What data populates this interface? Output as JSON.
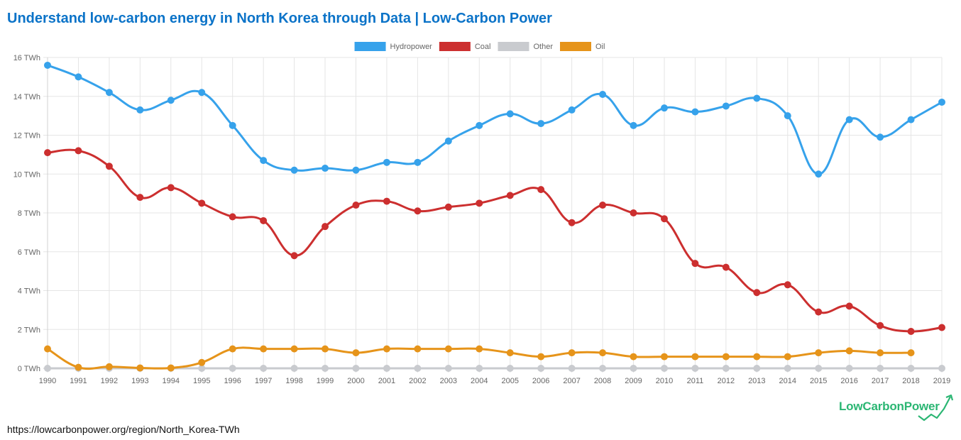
{
  "page": {
    "title": "Understand low-carbon energy in North Korea through Data | Low-Carbon Power",
    "url": "https://lowcarbonpower.org/region/North_Korea-TWh"
  },
  "logo": {
    "text": "LowCarbonPower",
    "color": "#2bb673"
  },
  "chart_data": {
    "type": "line",
    "title": "",
    "xlabel": "",
    "ylabel": "",
    "legend_position": "top-center",
    "grid": true,
    "ylim": [
      0,
      16
    ],
    "y_ticks": [
      "0 TWh",
      "2 TWh",
      "4 TWh",
      "6 TWh",
      "8 TWh",
      "10 TWh",
      "12 TWh",
      "14 TWh",
      "16 TWh"
    ],
    "categories": [
      "1990",
      "1991",
      "1992",
      "1993",
      "1994",
      "1995",
      "1996",
      "1997",
      "1998",
      "1999",
      "2000",
      "2001",
      "2002",
      "2003",
      "2004",
      "2005",
      "2006",
      "2007",
      "2008",
      "2009",
      "2010",
      "2011",
      "2012",
      "2013",
      "2014",
      "2015",
      "2016",
      "2017",
      "2018",
      "2019"
    ],
    "series": [
      {
        "name": "Hydropower",
        "color": "#36a2eb",
        "values": [
          15.6,
          15.0,
          14.2,
          13.3,
          13.8,
          14.2,
          12.5,
          10.7,
          10.2,
          10.3,
          10.2,
          10.6,
          10.6,
          11.7,
          12.5,
          13.1,
          12.6,
          13.3,
          14.1,
          12.5,
          13.4,
          13.2,
          13.5,
          13.9,
          13.0,
          10.0,
          12.8,
          11.9,
          12.8,
          13.7
        ]
      },
      {
        "name": "Coal",
        "color": "#cc2f2f",
        "values": [
          11.1,
          11.2,
          10.4,
          8.8,
          9.3,
          8.5,
          7.8,
          7.6,
          5.8,
          7.3,
          8.4,
          8.6,
          8.1,
          8.3,
          8.5,
          8.9,
          9.2,
          7.5,
          8.4,
          8.0,
          7.7,
          5.4,
          5.2,
          3.9,
          4.3,
          2.9,
          3.2,
          2.2,
          1.9,
          2.1
        ]
      },
      {
        "name": "Other",
        "color": "#c9cbcf",
        "values": [
          0,
          0,
          0,
          0,
          0,
          0,
          0,
          0,
          0,
          0,
          0,
          0,
          0,
          0,
          0,
          0,
          0,
          0,
          0,
          0,
          0,
          0,
          0,
          0,
          0,
          0,
          0,
          0,
          0,
          0
        ]
      },
      {
        "name": "Oil",
        "color": "#e6941a",
        "values": [
          1.0,
          0.05,
          0.08,
          0.02,
          0.02,
          0.3,
          1.0,
          1.0,
          1.0,
          1.0,
          0.8,
          1.0,
          1.0,
          1.0,
          1.0,
          0.8,
          0.6,
          0.8,
          0.8,
          0.6,
          0.6,
          0.6,
          0.6,
          0.6,
          0.6,
          0.8,
          0.9,
          0.8,
          0.8,
          null
        ]
      }
    ]
  }
}
